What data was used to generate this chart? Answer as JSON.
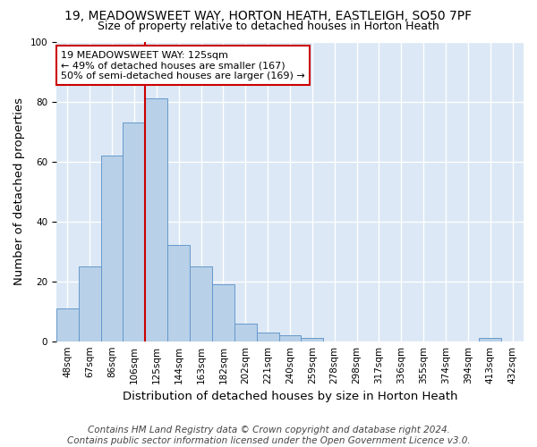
{
  "title": "19, MEADOWSWEET WAY, HORTON HEATH, EASTLEIGH, SO50 7PF",
  "subtitle": "Size of property relative to detached houses in Horton Heath",
  "xlabel": "Distribution of detached houses by size in Horton Heath",
  "ylabel": "Number of detached properties",
  "footer_line1": "Contains HM Land Registry data © Crown copyright and database right 2024.",
  "footer_line2": "Contains public sector information licensed under the Open Government Licence v3.0.",
  "bin_labels": [
    "48sqm",
    "67sqm",
    "86sqm",
    "106sqm",
    "125sqm",
    "144sqm",
    "163sqm",
    "182sqm",
    "202sqm",
    "221sqm",
    "240sqm",
    "259sqm",
    "278sqm",
    "298sqm",
    "317sqm",
    "336sqm",
    "355sqm",
    "374sqm",
    "394sqm",
    "413sqm",
    "432sqm"
  ],
  "bar_values": [
    11,
    25,
    62,
    73,
    81,
    32,
    25,
    19,
    6,
    3,
    2,
    1,
    0,
    0,
    0,
    0,
    0,
    0,
    0,
    1,
    0
  ],
  "bar_color": "#b8d0e8",
  "bar_edge_color": "#6699cc",
  "property_line_index": 4,
  "property_line_label": "19 MEADOWSWEET WAY: 125sqm",
  "annotation_line2": "← 49% of detached houses are smaller (167)",
  "annotation_line3": "50% of semi-detached houses are larger (169) →",
  "annotation_box_facecolor": "#ffffff",
  "annotation_box_edgecolor": "#cc0000",
  "vline_color": "#cc0000",
  "ylim": [
    0,
    100
  ],
  "background_color": "#dce8f5",
  "grid_color": "#ffffff",
  "fig_facecolor": "#ffffff",
  "title_fontsize": 10,
  "subtitle_fontsize": 9,
  "axis_label_fontsize": 9.5,
  "tick_fontsize": 7.5,
  "footer_fontsize": 7.5,
  "annotation_fontsize": 8
}
